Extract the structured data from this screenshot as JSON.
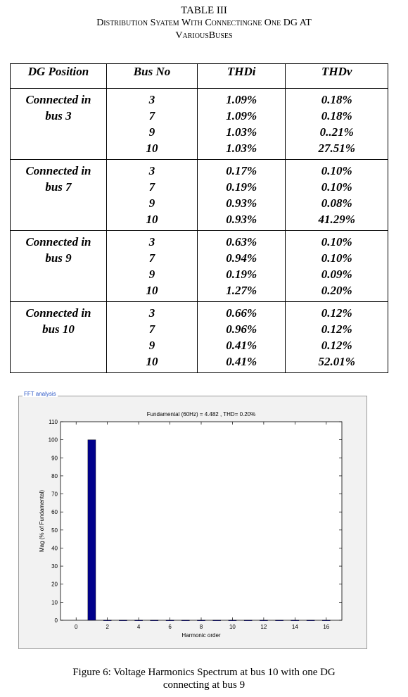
{
  "table_title": {
    "line1": "TABLE III",
    "line2": "Distribution Syatem With Connectingne One DG AT",
    "line3": "VariousBuses"
  },
  "table": {
    "headers": [
      "DG Position",
      "Bus No",
      "THDi",
      "THDv"
    ],
    "groups": [
      {
        "position": [
          "Connected in",
          "bus 3"
        ],
        "bus": [
          "3",
          "7",
          "9",
          "10"
        ],
        "thdi": [
          "1.09%",
          "1.09%",
          "1.03%",
          "1.03%"
        ],
        "thdv": [
          "0.18%",
          "0.18%",
          "0..21%",
          "27.51%"
        ]
      },
      {
        "position": [
          "Connected in",
          "bus 7"
        ],
        "bus": [
          "3",
          "7",
          "9",
          "10"
        ],
        "thdi": [
          "0.17%",
          "0.19%",
          "0.93%",
          "0.93%"
        ],
        "thdv": [
          "0.10%",
          "0.10%",
          "0.08%",
          "41.29%"
        ]
      },
      {
        "position": [
          "Connected in",
          "bus 9"
        ],
        "bus": [
          "3",
          "7",
          "9",
          "10"
        ],
        "thdi": [
          "0.63%",
          "0.94%",
          "0.19%",
          "1.27%"
        ],
        "thdv": [
          "0.10%",
          "0.10%",
          "0.09%",
          "0.20%"
        ]
      },
      {
        "position": [
          "Connected in",
          "bus 10"
        ],
        "bus": [
          "3",
          "7",
          "9",
          "10"
        ],
        "thdi": [
          "0.66%",
          "0.96%",
          "0.41%",
          "0.41%"
        ],
        "thdv": [
          "0.12%",
          "0.12%",
          "0.12%",
          "52.01%"
        ]
      }
    ]
  },
  "fft_panel_label": "FFT analysis",
  "chart_data": {
    "type": "bar",
    "title": "Fundamental (60Hz) = 4.482 , THD= 0.20%",
    "xlabel": "Harmonic order",
    "ylabel": "Mag (% of Fundamental)",
    "xlim": [
      -1,
      17
    ],
    "ylim": [
      0,
      110
    ],
    "xticks": [
      0,
      2,
      4,
      6,
      8,
      10,
      12,
      14,
      16
    ],
    "yticks": [
      0,
      10,
      20,
      30,
      40,
      50,
      60,
      70,
      80,
      90,
      100,
      110
    ],
    "x": [
      1,
      2,
      3,
      4,
      5,
      6,
      7,
      8,
      9,
      10,
      11,
      12,
      13,
      14,
      15,
      16
    ],
    "values": [
      100,
      0.1,
      0.1,
      0.1,
      0.1,
      0.1,
      0.1,
      0.1,
      0.1,
      0.1,
      0.1,
      0.1,
      0.1,
      0.1,
      0.1,
      0.1
    ],
    "bar_color": "#00008b"
  },
  "caption": {
    "line1": "Figure 6: Voltage Harmonics Spectrum at bus 10 with one DG",
    "line2": "connecting at bus 9"
  }
}
